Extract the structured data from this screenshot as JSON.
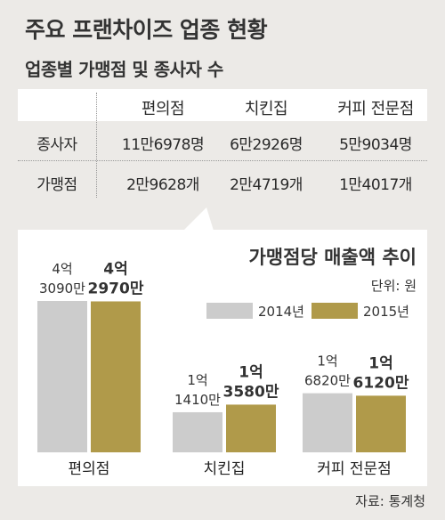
{
  "title": "주요 프랜차이즈 업종 현황",
  "table": {
    "title": "업종별 가맹점 및 종사자 수",
    "columns": [
      "편의점",
      "치킨집",
      "커피 전문점"
    ],
    "rows": [
      {
        "label": "종사자",
        "values": [
          "11만6978명",
          "6만2926명",
          "5만9034명"
        ]
      },
      {
        "label": "가맹점",
        "values": [
          "2만9628개",
          "2만4719개",
          "1만4017개"
        ]
      }
    ]
  },
  "source": "자료: 통계청",
  "chart_data": {
    "type": "bar",
    "title": "가맹점당 매출액 추이",
    "unit_label": "단위: 원",
    "categories": [
      "편의점",
      "치킨집",
      "커피 전문점"
    ],
    "series": [
      {
        "name": "2014년",
        "color": "#cccccc",
        "values": [
          430900000,
          114100000,
          168200000
        ],
        "labels": [
          [
            "4억",
            "3090만"
          ],
          [
            "1억",
            "1410만"
          ],
          [
            "1억",
            "6820만"
          ]
        ]
      },
      {
        "name": "2015년",
        "color": "#b09a4a",
        "values": [
          429700000,
          135800000,
          161200000
        ],
        "labels": [
          [
            "4억",
            "2970만"
          ],
          [
            "1억",
            "3580만"
          ],
          [
            "1억",
            "6120만"
          ]
        ]
      }
    ]
  }
}
